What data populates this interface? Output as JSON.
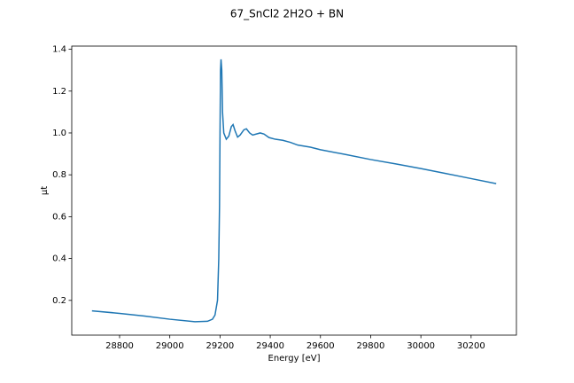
{
  "chart_data": {
    "type": "line",
    "title": "67_SnCl2 2H2O + BN",
    "xlabel": "Energy [eV]",
    "ylabel": "µt",
    "x": [
      28690,
      28800,
      28900,
      29000,
      29100,
      29150,
      29170,
      29180,
      29190,
      29195,
      29198,
      29200,
      29202,
      29204,
      29207,
      29210,
      29215,
      29225,
      29235,
      29245,
      29252,
      29260,
      29270,
      29280,
      29295,
      29305,
      29318,
      29330,
      29345,
      29360,
      29375,
      29395,
      29420,
      29450,
      29480,
      29510,
      29560,
      29600,
      29700,
      29800,
      29900,
      30000,
      30100,
      30200,
      30300
    ],
    "series": [
      {
        "color": "#1f77b4",
        "values": [
          0.15,
          0.138,
          0.125,
          0.11,
          0.098,
          0.1,
          0.11,
          0.13,
          0.2,
          0.4,
          0.65,
          1.0,
          1.3,
          1.352,
          1.3,
          1.1,
          1.0,
          0.97,
          0.985,
          1.03,
          1.04,
          1.01,
          0.98,
          0.99,
          1.015,
          1.02,
          1.0,
          0.99,
          0.995,
          1.0,
          0.995,
          0.978,
          0.97,
          0.965,
          0.955,
          0.942,
          0.932,
          0.92,
          0.897,
          0.873,
          0.852,
          0.83,
          0.806,
          0.782,
          0.758
        ]
      }
    ],
    "xlim": [
      28609.5,
      30380.5
    ],
    "xticks": [
      28800,
      29000,
      29200,
      29400,
      29600,
      29800,
      30000,
      30200
    ],
    "ylim": [
      0.034,
      1.415
    ],
    "yticks": [
      0.2,
      0.4,
      0.6,
      0.8,
      {
        "value": 1,
        "label": "1.0"
      },
      1.2,
      1.4
    ]
  }
}
